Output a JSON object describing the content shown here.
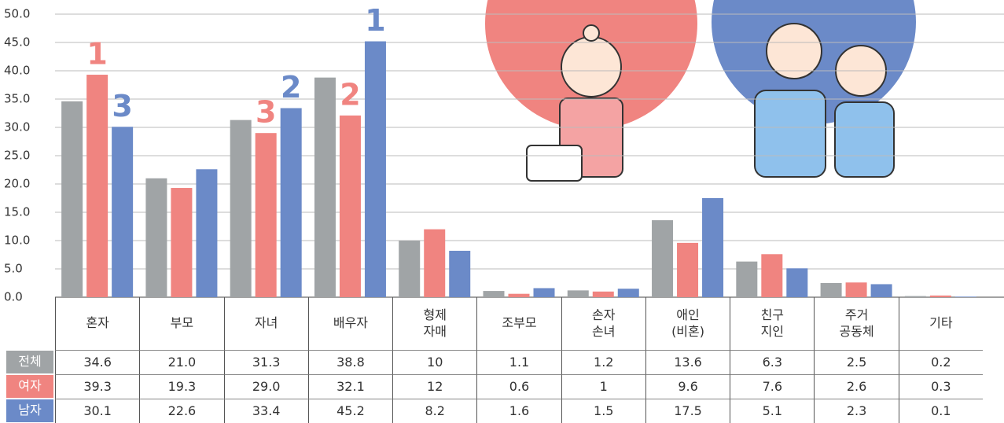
{
  "chart_data": {
    "type": "bar",
    "categories": [
      "혼자",
      "부모",
      "자녀",
      "배우자",
      "형제\n자매",
      "조부모",
      "손자\n손녀",
      "애인\n(비혼)",
      "친구\n지인",
      "주거\n공동체",
      "기타"
    ],
    "series": [
      {
        "name": "전체",
        "color": "#a0a4a6",
        "values": [
          34.6,
          21.0,
          31.3,
          38.8,
          10,
          1.1,
          1.2,
          13.6,
          6.3,
          2.5,
          0.2
        ],
        "value_labels": [
          "34.6",
          "21.0",
          "31.3",
          "38.8",
          "10",
          "1.1",
          "1.2",
          "13.6",
          "6.3",
          "2.5",
          "0.2"
        ]
      },
      {
        "name": "여자",
        "color": "#f08480",
        "values": [
          39.3,
          19.3,
          29.0,
          32.1,
          12,
          0.6,
          1,
          9.6,
          7.6,
          2.6,
          0.3
        ],
        "value_labels": [
          "39.3",
          "19.3",
          "29.0",
          "32.1",
          "12",
          "0.6",
          "1",
          "9.6",
          "7.6",
          "2.6",
          "0.3"
        ]
      },
      {
        "name": "남자",
        "color": "#6b8ac8",
        "values": [
          30.1,
          22.6,
          33.4,
          45.2,
          8.2,
          1.6,
          1.5,
          17.5,
          5.1,
          2.3,
          0.1
        ],
        "value_labels": [
          "30.1",
          "22.6",
          "33.4",
          "45.2",
          "8.2",
          "1.6",
          "1.5",
          "17.5",
          "5.1",
          "2.3",
          "0.1"
        ]
      }
    ],
    "ylim": [
      0,
      50
    ],
    "yticks": [
      {
        "value": 0,
        "label": "0.0"
      },
      {
        "value": 5,
        "label": "5.0"
      },
      {
        "value": 10,
        "label": "10.0"
      },
      {
        "value": 15,
        "label": "15.0"
      },
      {
        "value": 20,
        "label": "20.0"
      },
      {
        "value": 25,
        "label": "25.0"
      },
      {
        "value": 30,
        "label": "30.0"
      },
      {
        "value": 35,
        "label": "35.0"
      },
      {
        "value": 40,
        "label": "40.0"
      },
      {
        "value": 45,
        "label": "45.0"
      },
      {
        "value": 50,
        "label": "50.0"
      }
    ],
    "grid": true,
    "annotations": [
      {
        "label": "1",
        "series": "여자",
        "category": "혼자"
      },
      {
        "label": "3",
        "series": "남자",
        "category": "혼자"
      },
      {
        "label": "3",
        "series": "여자",
        "category": "자녀"
      },
      {
        "label": "2",
        "series": "남자",
        "category": "자녀"
      },
      {
        "label": "2",
        "series": "여자",
        "category": "배우자"
      },
      {
        "label": "1",
        "series": "남자",
        "category": "배우자"
      }
    ]
  }
}
